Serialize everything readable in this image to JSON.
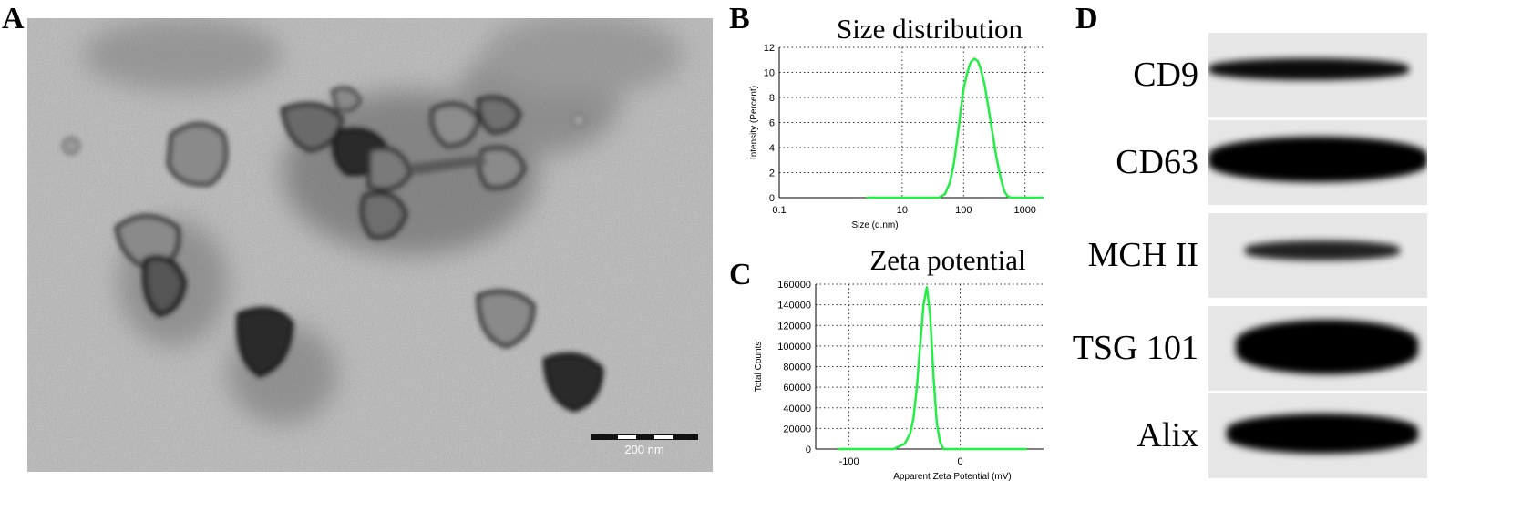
{
  "panels": {
    "a": "A",
    "b": "B",
    "c": "C",
    "d": "D"
  },
  "tem": {
    "scale_bar_label": "200 nm"
  },
  "chart_data": [
    {
      "type": "line",
      "title": "Size distribution",
      "xlabel": "Size (d.nm)",
      "ylabel": "Intensity (Percent)",
      "x_scale": "log",
      "xlim": [
        0.1,
        2000
      ],
      "ylim": [
        0,
        12
      ],
      "x_ticks": [
        0.1,
        10,
        100,
        1000
      ],
      "x_tick_labels": [
        "0.1",
        "10",
        "100",
        "1000"
      ],
      "y_ticks": [
        0,
        2,
        4,
        6,
        8,
        10,
        12
      ],
      "y_tick_labels": [
        "0",
        "2",
        "4",
        "6",
        "8",
        "10",
        "12"
      ],
      "grid": true,
      "line_color": "#22ee44",
      "series": [
        {
          "x": [
            2.6,
            40,
            50,
            60,
            70,
            80,
            90,
            100,
            115,
            130,
            150,
            170,
            190,
            220,
            250,
            290,
            340,
            400,
            460,
            520,
            600,
            800,
            2000
          ],
          "y": [
            0,
            0,
            0.3,
            1.2,
            2.8,
            4.9,
            7.0,
            8.7,
            10.0,
            10.8,
            11.1,
            10.9,
            10.3,
            9.0,
            7.4,
            5.4,
            3.3,
            1.6,
            0.5,
            0.1,
            0,
            0,
            0
          ]
        }
      ]
    },
    {
      "type": "line",
      "title": "Zeta potential",
      "xlabel": "Apparent Zeta Potential (mV)",
      "ylabel": "Total Counts",
      "xlim": [
        -130,
        75
      ],
      "ylim": [
        0,
        160000
      ],
      "x_ticks": [
        -100,
        0
      ],
      "x_tick_labels": [
        "-100",
        "0"
      ],
      "y_ticks": [
        0,
        20000,
        40000,
        60000,
        80000,
        100000,
        120000,
        140000,
        160000
      ],
      "y_tick_labels": [
        "0",
        "20000",
        "40000",
        "60000",
        "80000",
        "100000",
        "120000",
        "140000",
        "160000"
      ],
      "grid": true,
      "line_color": "#22ee44",
      "series": [
        {
          "x": [
            -110,
            -60,
            -50,
            -45,
            -42,
            -39,
            -36,
            -33,
            -30,
            -27,
            -24,
            -21,
            -18,
            -15,
            60
          ],
          "y": [
            0,
            0,
            5000,
            15000,
            30000,
            60000,
            100000,
            140000,
            157000,
            130000,
            70000,
            25000,
            6000,
            0,
            0
          ]
        }
      ]
    }
  ],
  "western_blot": {
    "bands": [
      {
        "label": "CD9"
      },
      {
        "label": "CD63"
      },
      {
        "label": "MCH II"
      },
      {
        "label": "TSG 101"
      },
      {
        "label": "Alix"
      }
    ]
  }
}
